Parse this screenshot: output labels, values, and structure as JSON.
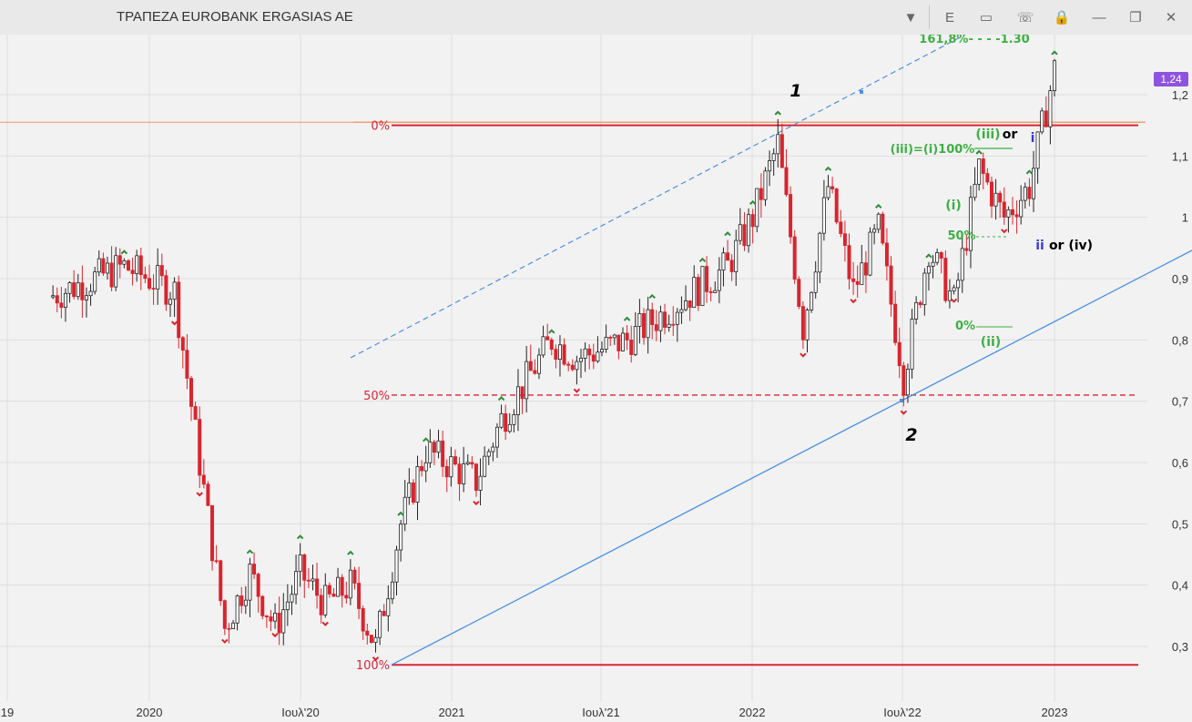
{
  "window": {
    "title": "ΤΡΑΠΕΖΑ EUROBANK ERGASIAS AE",
    "buttons": [
      {
        "name": "dropdown-button",
        "label": "▼"
      },
      {
        "name": "e-button",
        "label": "E"
      },
      {
        "name": "panel-button",
        "label": "▭"
      },
      {
        "name": "comment-button",
        "label": "☏"
      },
      {
        "name": "lock-button",
        "label": "🔒"
      },
      {
        "name": "minimize-button",
        "label": "—"
      },
      {
        "name": "restore-button",
        "label": "❐"
      },
      {
        "name": "close-button",
        "label": "✕"
      }
    ]
  },
  "colors": {
    "bull": "#ffffff",
    "bull_edge": "#222222",
    "bear": "#d8252e",
    "up_marker": "#2e8b3a",
    "down_marker": "#d8252e",
    "fib": "#d8253a",
    "fib_orange": "#f0a070",
    "channel": "#4a90e2",
    "wave_green": "#3cb043",
    "wave_blue": "#3b3bd4"
  },
  "current_price": "1,24",
  "chart_data": {
    "type": "candlestick",
    "x_ticks": [
      "19",
      "2020",
      "Ιουλ'20",
      "2021",
      "Ιουλ'21",
      "2022",
      "Ιουλ'22",
      "2023"
    ],
    "y_ticks": [
      "1,2",
      "1,1",
      "1",
      "0,9",
      "0,8",
      "0,7",
      "0,6",
      "0,5",
      "0,4",
      "0,3"
    ],
    "ylim": [
      0.25,
      1.3
    ],
    "fib_levels": [
      {
        "label": "0%",
        "value": 1.15
      },
      {
        "label": "50%",
        "value": 0.71
      },
      {
        "label": "100%",
        "value": 0.27
      }
    ],
    "horizontal_line": 1.155,
    "wave_labels": [
      {
        "text": "1",
        "color": "black"
      },
      {
        "text": "2",
        "color": "black"
      },
      {
        "text": "(i)",
        "color": "green"
      },
      {
        "text": "(ii)",
        "color": "green"
      },
      {
        "text": "(iii)",
        "color": "green"
      },
      {
        "text": "or",
        "color": "black"
      },
      {
        "text": "i",
        "color": "blue"
      },
      {
        "text": "ii",
        "color": "blue"
      },
      {
        "text": "or (iv)",
        "color": "black"
      },
      {
        "text": "(iii)=(i)100%",
        "color": "green"
      },
      {
        "text": "50%",
        "color": "green"
      },
      {
        "text": "0%",
        "color": "green"
      },
      {
        "text": "161,8%- - - -1.30",
        "color": "green"
      }
    ],
    "anchor_points": [
      {
        "date": "2019-09",
        "price": 0.87
      },
      {
        "date": "2019-12",
        "price": 0.92
      },
      {
        "date": "2020-02",
        "price": 0.88
      },
      {
        "date": "2020-03",
        "price": 0.6
      },
      {
        "date": "2020-04",
        "price": 0.33
      },
      {
        "date": "2020-05",
        "price": 0.42
      },
      {
        "date": "2020-06",
        "price": 0.33
      },
      {
        "date": "2020-07",
        "price": 0.42
      },
      {
        "date": "2020-08",
        "price": 0.37
      },
      {
        "date": "2020-09",
        "price": 0.4
      },
      {
        "date": "2020-10",
        "price": 0.3
      },
      {
        "date": "2020-11",
        "price": 0.5
      },
      {
        "date": "2020-12",
        "price": 0.62
      },
      {
        "date": "2021-02",
        "price": 0.57
      },
      {
        "date": "2021-03",
        "price": 0.67
      },
      {
        "date": "2021-05",
        "price": 0.8
      },
      {
        "date": "2021-06",
        "price": 0.77
      },
      {
        "date": "2021-08",
        "price": 0.8
      },
      {
        "date": "2021-09",
        "price": 0.83
      },
      {
        "date": "2021-11",
        "price": 0.89
      },
      {
        "date": "2021-12",
        "price": 0.92
      },
      {
        "date": "2022-01",
        "price": 1.0
      },
      {
        "date": "2022-02",
        "price": 1.12
      },
      {
        "date": "2022-03",
        "price": 0.82
      },
      {
        "date": "2022-04",
        "price": 1.05
      },
      {
        "date": "2022-05",
        "price": 0.88
      },
      {
        "date": "2022-06",
        "price": 0.98
      },
      {
        "date": "2022-07",
        "price": 0.74
      },
      {
        "date": "2022-08",
        "price": 0.95
      },
      {
        "date": "2022-09",
        "price": 0.86
      },
      {
        "date": "2022-10",
        "price": 1.08
      },
      {
        "date": "2022-11",
        "price": 1.0
      },
      {
        "date": "2022-12",
        "price": 1.05
      },
      {
        "date": "2023-01",
        "price": 1.24
      }
    ]
  }
}
